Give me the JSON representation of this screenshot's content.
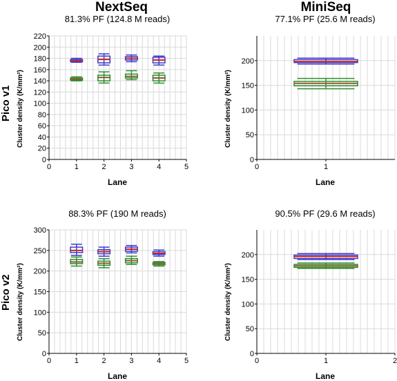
{
  "column_titles": [
    "NextSeq",
    "MiniSeq"
  ],
  "row_titles": [
    "Pico v1",
    "Pico v2"
  ],
  "colors": {
    "upper_box": "#3a3acc",
    "lower_box": "#2e8b2e",
    "median_upper": "#cc2222",
    "median_lower": "#8b5a2b",
    "whisker": "#1a1a99",
    "grid": "#d9d9d9"
  },
  "chart_data": [
    {
      "type": "box",
      "title": "81.3% PF (124.8 M reads)",
      "xlabel": "Lane",
      "ylabel": "Cluster density (K/mm²)",
      "xlim": [
        0,
        5
      ],
      "ylim": [
        0,
        220
      ],
      "xticks": [
        0,
        1,
        2,
        3,
        4,
        5
      ],
      "yticks": [
        0,
        20,
        40,
        60,
        80,
        100,
        120,
        140,
        160,
        180,
        200,
        220
      ],
      "series": [
        {
          "boxes": [
            {
              "x": 1,
              "min": 173,
              "q1": 174,
              "median": 176,
              "q3": 178,
              "max": 180
            },
            {
              "x": 2,
              "min": 168,
              "q1": 172,
              "median": 178,
              "q3": 184,
              "max": 188
            },
            {
              "x": 3,
              "min": 174,
              "q1": 177,
              "median": 180,
              "q3": 183,
              "max": 186
            },
            {
              "x": 4,
              "min": 168,
              "q1": 172,
              "median": 177,
              "q3": 182,
              "max": 184
            }
          ]
        },
        {
          "boxes": [
            {
              "x": 1,
              "min": 140,
              "q1": 141,
              "median": 143,
              "q3": 145,
              "max": 147
            },
            {
              "x": 2,
              "min": 136,
              "q1": 140,
              "median": 146,
              "q3": 150,
              "max": 156
            },
            {
              "x": 3,
              "min": 142,
              "q1": 145,
              "median": 148,
              "q3": 152,
              "max": 158
            },
            {
              "x": 4,
              "min": 136,
              "q1": 140,
              "median": 145,
              "q3": 150,
              "max": 154
            }
          ]
        }
      ]
    },
    {
      "type": "box",
      "title": "77.1% PF (25.6 M reads)",
      "xlabel": "Lane",
      "ylabel": "Cluster density (K/mm²)",
      "xlim": [
        0,
        2
      ],
      "ylim": [
        0,
        250
      ],
      "xticks": [
        0,
        1
      ],
      "yticks": [
        0,
        50,
        100,
        150,
        200
      ],
      "series": [
        {
          "boxes": [
            {
              "x": 1,
              "min": 193,
              "q1": 196,
              "median": 198,
              "q3": 202,
              "max": 205
            }
          ]
        },
        {
          "boxes": [
            {
              "x": 1,
              "min": 143,
              "q1": 149,
              "median": 154,
              "q3": 158,
              "max": 164
            }
          ]
        }
      ]
    },
    {
      "type": "box",
      "title": "88.3% PF (190 M reads)",
      "xlabel": "Lane",
      "ylabel": "Cluster density (K/mm²)",
      "xlim": [
        0,
        5
      ],
      "ylim": [
        0,
        300
      ],
      "xticks": [
        0,
        1,
        2,
        3,
        4,
        5
      ],
      "yticks": [
        0,
        50,
        100,
        150,
        200,
        250,
        300
      ],
      "series": [
        {
          "boxes": [
            {
              "x": 1,
              "min": 238,
              "q1": 245,
              "median": 250,
              "q3": 258,
              "max": 265
            },
            {
              "x": 2,
              "min": 236,
              "q1": 242,
              "median": 247,
              "q3": 252,
              "max": 258
            },
            {
              "x": 3,
              "min": 244,
              "q1": 248,
              "median": 253,
              "q3": 258,
              "max": 262
            },
            {
              "x": 4,
              "min": 236,
              "q1": 240,
              "median": 243,
              "q3": 247,
              "max": 251
            }
          ]
        },
        {
          "boxes": [
            {
              "x": 1,
              "min": 212,
              "q1": 218,
              "median": 222,
              "q3": 228,
              "max": 234
            },
            {
              "x": 2,
              "min": 208,
              "q1": 214,
              "median": 219,
              "q3": 224,
              "max": 230
            },
            {
              "x": 3,
              "min": 216,
              "q1": 220,
              "median": 225,
              "q3": 230,
              "max": 236
            },
            {
              "x": 4,
              "min": 212,
              "q1": 215,
              "median": 218,
              "q3": 221,
              "max": 223
            }
          ]
        }
      ]
    },
    {
      "type": "box",
      "title": "90.5% PF (29.6 M reads)",
      "xlabel": "Lane",
      "ylabel": "Cluster density (K/mm²)",
      "xlim": [
        0,
        2
      ],
      "ylim": [
        0,
        250
      ],
      "xticks": [
        0,
        1,
        2
      ],
      "yticks": [
        0,
        50,
        100,
        150,
        200
      ],
      "series": [
        {
          "boxes": [
            {
              "x": 1,
              "min": 190,
              "q1": 192,
              "median": 196,
              "q3": 199,
              "max": 202
            }
          ]
        },
        {
          "boxes": [
            {
              "x": 1,
              "min": 172,
              "q1": 174,
              "median": 177,
              "q3": 180,
              "max": 183
            }
          ]
        }
      ]
    }
  ]
}
